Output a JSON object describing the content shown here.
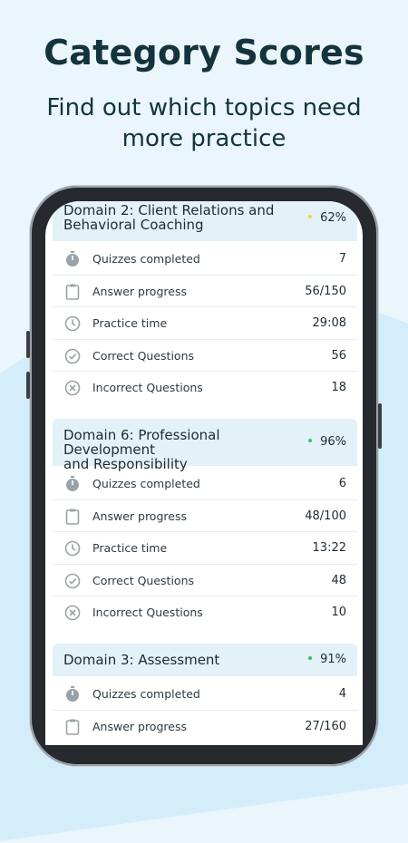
{
  "headline": "Category Scores",
  "subline_1": "Find out which topics need",
  "subline_2": "more practice",
  "colors": {
    "yellow": "#e9df2c",
    "green": "#35c06a",
    "icon": "#9aa3a9"
  },
  "row_labels": {
    "quizzes": "Quizzes completed",
    "progress": "Answer progress",
    "time": "Practice time",
    "correct": "Correct Questions",
    "incorrect": "Incorrect Questions"
  },
  "domains": [
    {
      "title_1": "Domain 2: Client Relations and",
      "title_2": "Behavioral Coaching",
      "percent": "62%",
      "quizzes": "7",
      "progress": "56/150",
      "time": "29:08",
      "correct": "56",
      "incorrect": "18"
    },
    {
      "title_1": "Domain 6: Professional Development",
      "title_2": "and Responsibility",
      "percent": "96%",
      "quizzes": "6",
      "progress": "48/100",
      "time": "13:22",
      "correct": "48",
      "incorrect": "10"
    },
    {
      "title_1": "Domain 3: Assessment",
      "percent": "91%",
      "quizzes": "4",
      "progress": "27/160"
    }
  ]
}
